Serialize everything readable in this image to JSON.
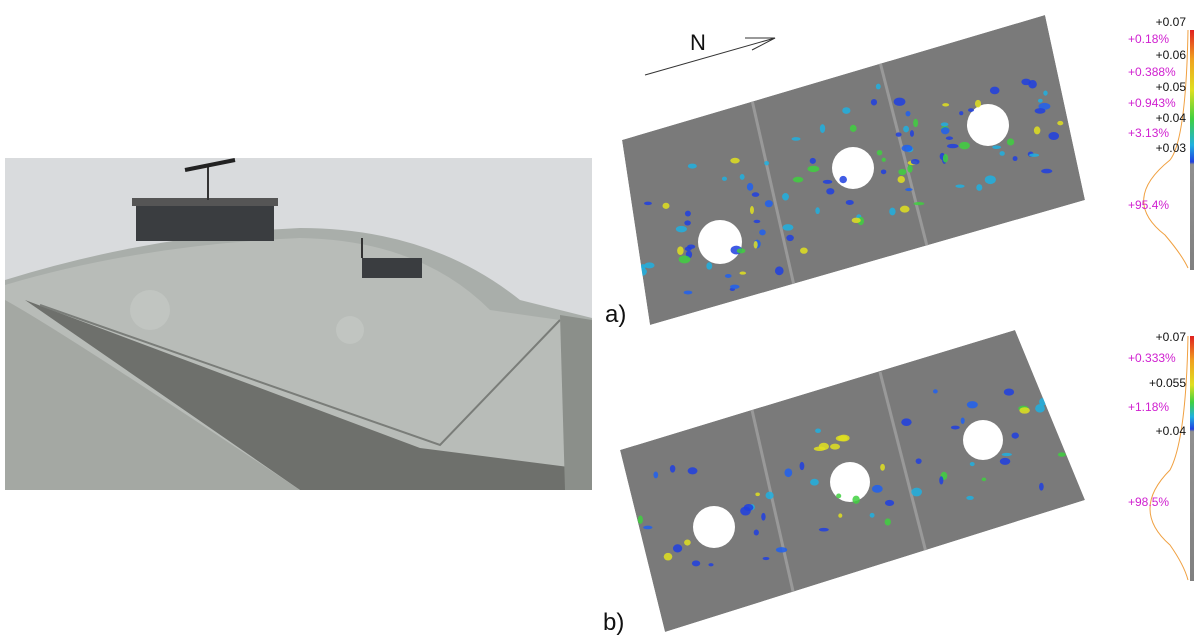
{
  "north_label": "N",
  "panels": [
    {
      "label": "a)",
      "scale": {
        "values": [
          "+0.07",
          "+0.06",
          "+0.05",
          "+0.04",
          "+0.03"
        ],
        "percentages": [
          "+0.18%",
          "+0.388%",
          "+0.943%",
          "+3.13%",
          "+95.4%"
        ]
      }
    },
    {
      "label": "b)",
      "scale": {
        "values": [
          "+0.07",
          "+0.055",
          "+0.04"
        ],
        "percentages": [
          "+0.333%",
          "+1.18%",
          "+98.5%"
        ]
      }
    }
  ]
}
